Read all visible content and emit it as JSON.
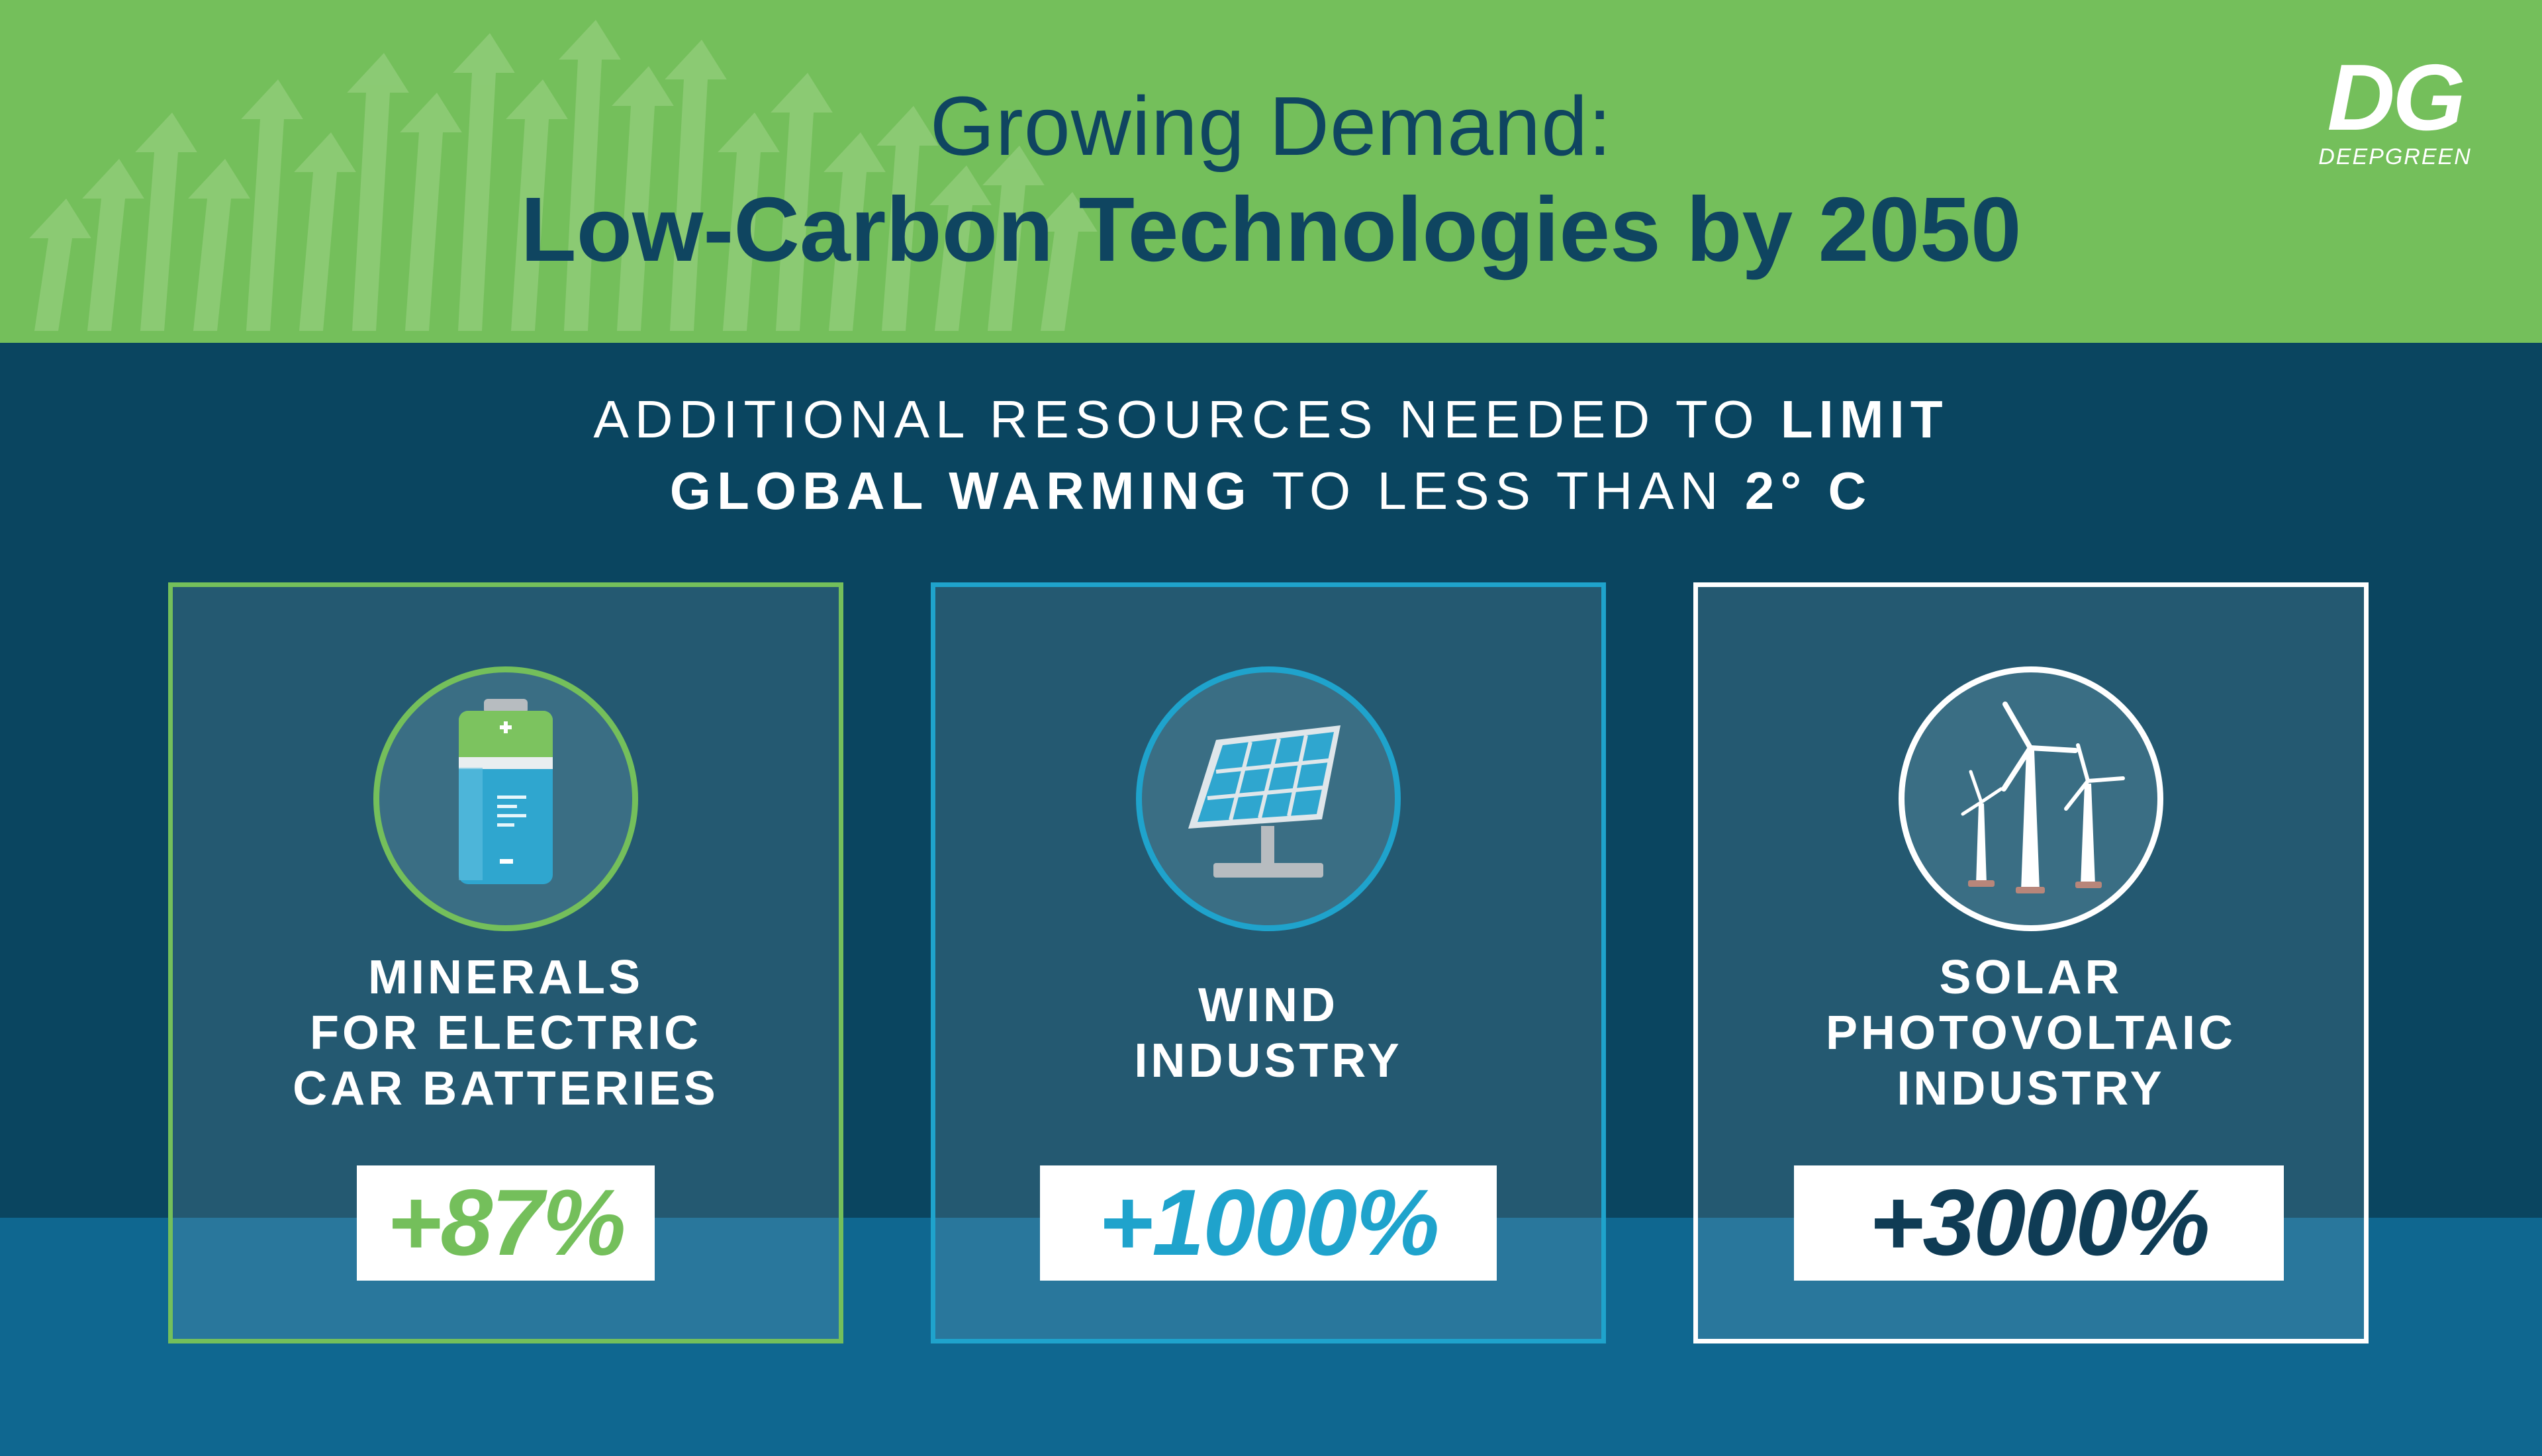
{
  "header": {
    "title_line1": "Growing Demand:",
    "title_line2": "Low-Carbon Technologies by 2050"
  },
  "logo": {
    "mark": "DG",
    "text": "DEEPGREEN"
  },
  "subtitle": {
    "line1_regular": "ADDITIONAL RESOURCES NEEDED TO ",
    "line1_bold": "LIMIT",
    "line2_bold": "GLOBAL WARMING",
    "line2_regular": " TO LESS THAN ",
    "line2_bold_end": "2° C"
  },
  "cards": [
    {
      "label_lines": [
        "MINERALS",
        "FOR ELECTRIC",
        "CAR BATTERIES"
      ],
      "value": "+87%",
      "icon": "battery-icon",
      "accent": "#74bf5b"
    },
    {
      "label_lines": [
        "WIND",
        "INDUSTRY"
      ],
      "value": "+1000%",
      "icon": "solar-panel-icon",
      "accent": "#1fa3cc"
    },
    {
      "label_lines": [
        "SOLAR",
        "PHOTOVOLTAIC",
        "INDUSTRY"
      ],
      "value": "+3000%",
      "icon": "wind-turbine-icon",
      "accent": "#ffffff"
    }
  ],
  "colors": {
    "header_green": "#74bf5b",
    "navy": "#0a4560",
    "band_blue": "#0f6790",
    "title_color": "#0f4560"
  }
}
